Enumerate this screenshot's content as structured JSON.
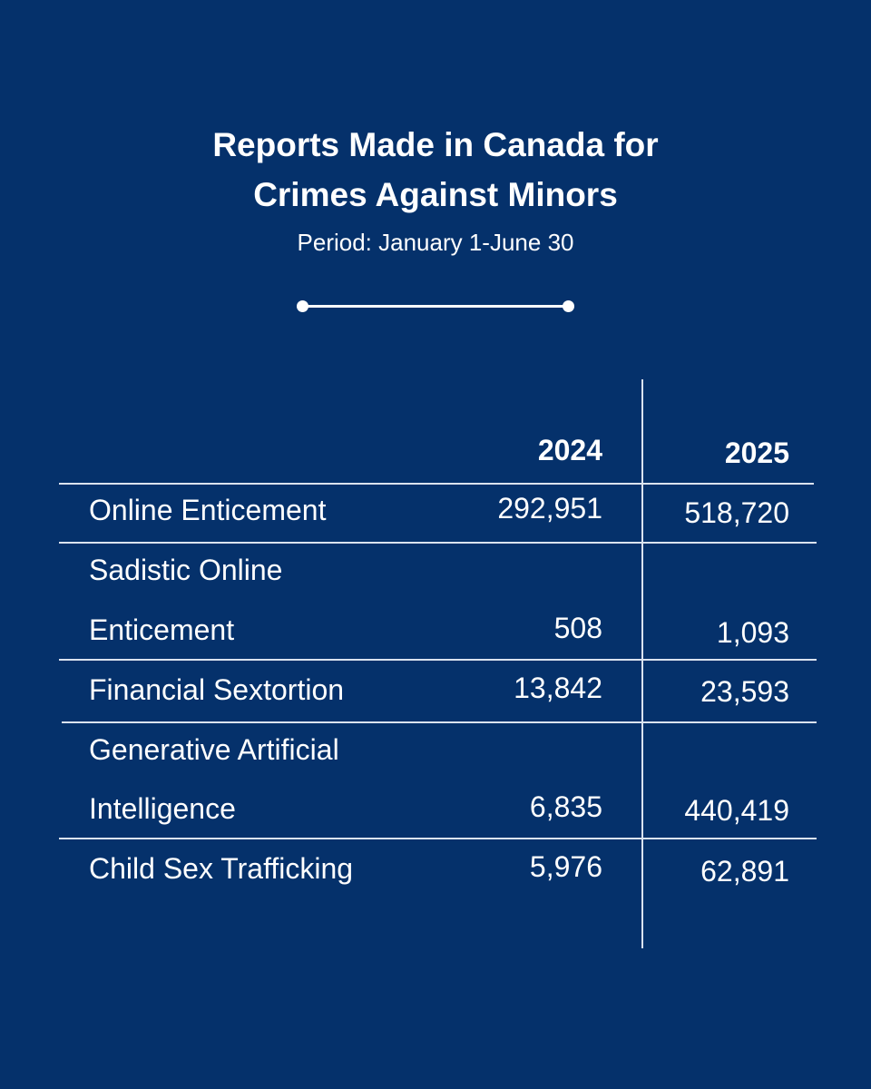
{
  "header": {
    "title_lines": [
      "Reports Made in Canada for",
      "Crimes Against Minors"
    ],
    "subtitle": "Period: January 1-June 30"
  },
  "chart_data": {
    "type": "table",
    "columns": [
      "2024",
      "2025"
    ],
    "rows": [
      {
        "label_lines": [
          "Online Enticement"
        ],
        "values": [
          "292,951",
          "518,720"
        ]
      },
      {
        "label_lines": [
          "Sadistic Online",
          "Enticement"
        ],
        "values": [
          "508",
          "1,093"
        ]
      },
      {
        "label_lines": [
          "Financial Sextortion"
        ],
        "values": [
          "13,842",
          "23,593"
        ]
      },
      {
        "label_lines": [
          "Generative Artificial",
          "Intelligence"
        ],
        "values": [
          "6,835",
          "440,419"
        ]
      },
      {
        "label_lines": [
          "Child Sex Trafficking"
        ],
        "values": [
          "5,976",
          "62,891"
        ]
      }
    ]
  }
}
